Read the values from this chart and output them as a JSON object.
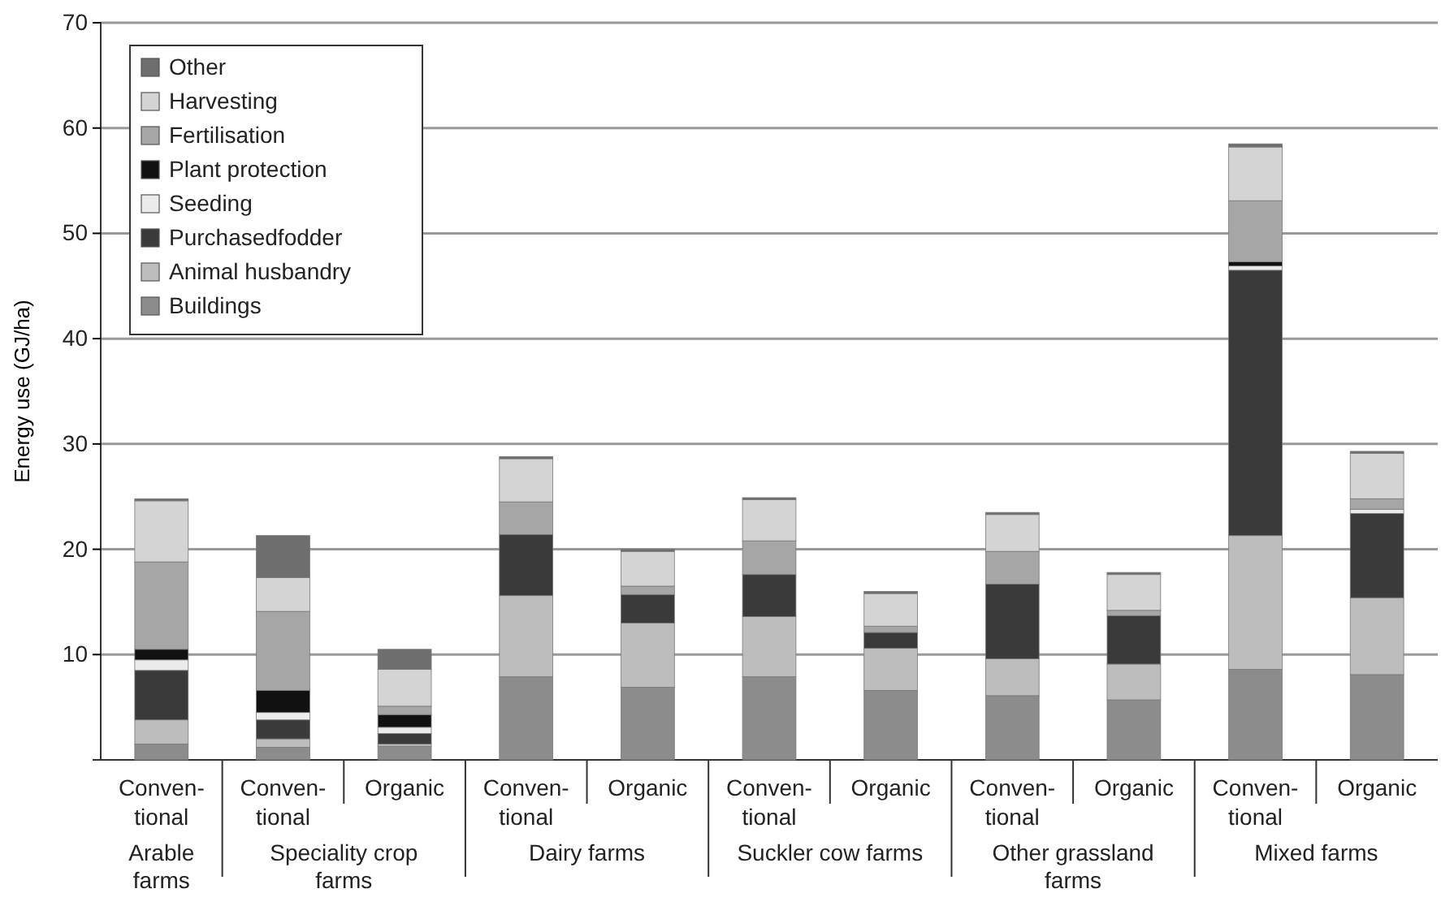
{
  "chart_data": {
    "type": "bar",
    "stacked": true,
    "ylabel": "Energy use (GJ/ha)",
    "categories": [
      "Conven-tional",
      "Conven-tional",
      "Organic",
      "Conven-tional",
      "Organic",
      "Conven-tional",
      "Organic",
      "Conven-tional",
      "Organic",
      "Conven-tional",
      "Organic"
    ],
    "annotations": [
      "Arable farms",
      "Speciality crop farms",
      "Dairy farms",
      "Suckler cow farms",
      "Other grassland farms",
      "Mixed farms"
    ],
    "ylim": [
      0,
      70
    ],
    "yticks": [
      10,
      20,
      30,
      40,
      50,
      60,
      70
    ],
    "grid": "y",
    "legend": "top left",
    "series": [
      {
        "name": "Buildings",
        "color": "#8c8c8c",
        "values": [
          1.5,
          1.2,
          1.3,
          7.9,
          6.9,
          7.9,
          6.6,
          6.1,
          5.7,
          8.6,
          8.1
        ]
      },
      {
        "name": "Animal husbandry",
        "color": "#bdbdbd",
        "values": [
          2.3,
          0.8,
          0.2,
          7.7,
          6.1,
          5.7,
          4.0,
          3.5,
          3.4,
          12.7,
          7.3
        ]
      },
      {
        "name": "Purchasedfodder",
        "color": "#3a3a3a",
        "values": [
          4.7,
          1.8,
          1.0,
          5.8,
          2.7,
          4.0,
          1.5,
          7.1,
          4.6,
          25.2,
          8.0
        ]
      },
      {
        "name": "Seeding",
        "color": "#ebebeb",
        "values": [
          1.0,
          0.7,
          0.6,
          0,
          0,
          0,
          0,
          0,
          0,
          0.4,
          0.4
        ]
      },
      {
        "name": "Plant protection",
        "color": "#111111",
        "values": [
          1.0,
          2.1,
          1.2,
          0,
          0,
          0,
          0,
          0,
          0,
          0.4,
          0
        ]
      },
      {
        "name": "Fertilisation",
        "color": "#a6a6a6",
        "values": [
          8.3,
          7.5,
          0.8,
          3.1,
          0.8,
          3.2,
          0.6,
          3.1,
          0.5,
          5.8,
          1.0
        ]
      },
      {
        "name": "Harvesting",
        "color": "#d4d4d4",
        "values": [
          5.8,
          3.2,
          3.5,
          4.1,
          3.3,
          3.9,
          3.1,
          3.5,
          3.4,
          5.1,
          4.3
        ]
      },
      {
        "name": "Other",
        "color": "#6e6e6e",
        "values": [
          0.2,
          4.0,
          1.9,
          0.2,
          0.2,
          0.2,
          0.2,
          0.2,
          0.2,
          0.3,
          0.2
        ]
      }
    ]
  }
}
